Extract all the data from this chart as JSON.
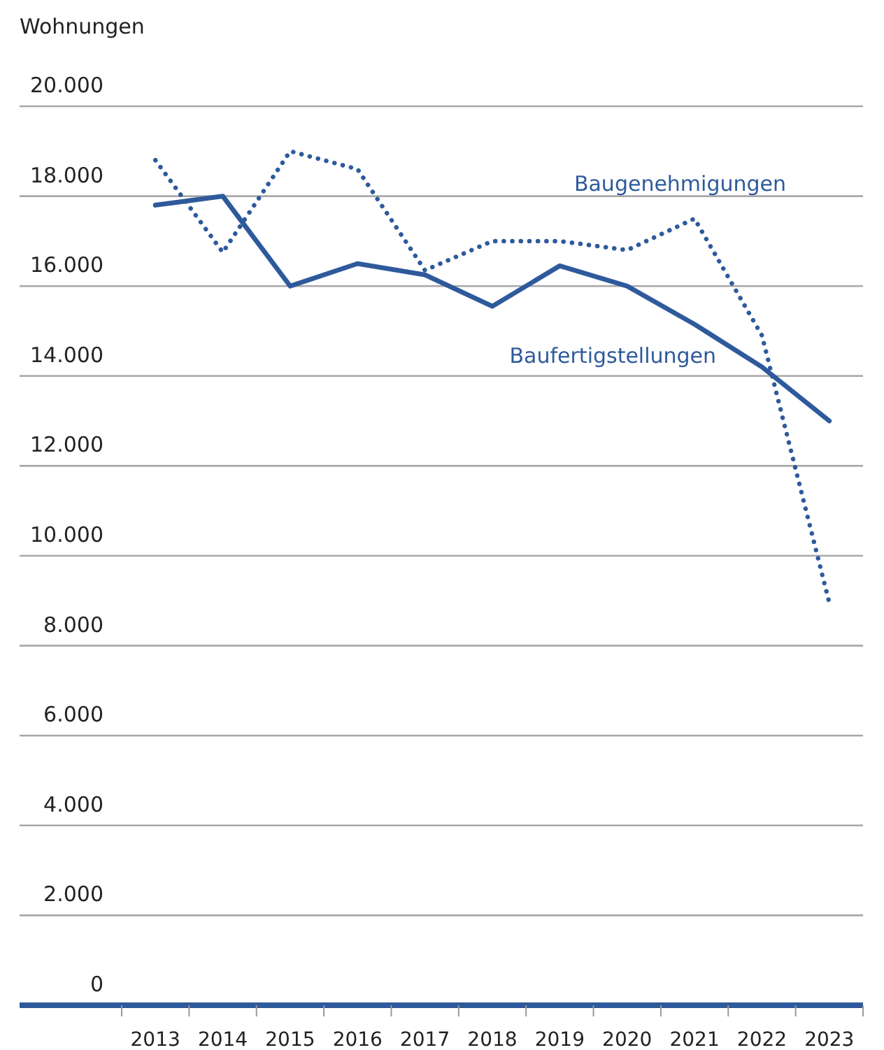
{
  "chart_data": {
    "type": "line",
    "ylabel": "Wohnungen",
    "categories": [
      "2013",
      "2014",
      "2015",
      "2016",
      "2017",
      "2018",
      "2019",
      "2020",
      "2021",
      "2022",
      "2023"
    ],
    "series": [
      {
        "name": "Baugenehmigungen",
        "color": "#2e5a9c",
        "line_style": "dotted",
        "values": [
          18800,
          16750,
          19000,
          18600,
          16350,
          17000,
          17000,
          16800,
          17500,
          14900,
          8950
        ]
      },
      {
        "name": "Baufertigstellungen",
        "color": "#2e5a9c",
        "line_style": "solid",
        "values": [
          17800,
          18000,
          16000,
          16500,
          16250,
          15550,
          16450,
          16000,
          15150,
          14200,
          13000
        ]
      }
    ],
    "ylim": [
      0,
      20000
    ],
    "yticks": [
      {
        "value": 0,
        "label": "0"
      },
      {
        "value": 2000,
        "label": "2.000"
      },
      {
        "value": 4000,
        "label": "4.000"
      },
      {
        "value": 6000,
        "label": "6.000"
      },
      {
        "value": 8000,
        "label": "8.000"
      },
      {
        "value": 10000,
        "label": "10.000"
      },
      {
        "value": 12000,
        "label": "12.000"
      },
      {
        "value": 14000,
        "label": "14.000"
      },
      {
        "value": 16000,
        "label": "16.000"
      },
      {
        "value": 18000,
        "label": "18.000"
      },
      {
        "value": 20000,
        "label": "20.000"
      }
    ],
    "grid": "y",
    "marker": "none"
  }
}
